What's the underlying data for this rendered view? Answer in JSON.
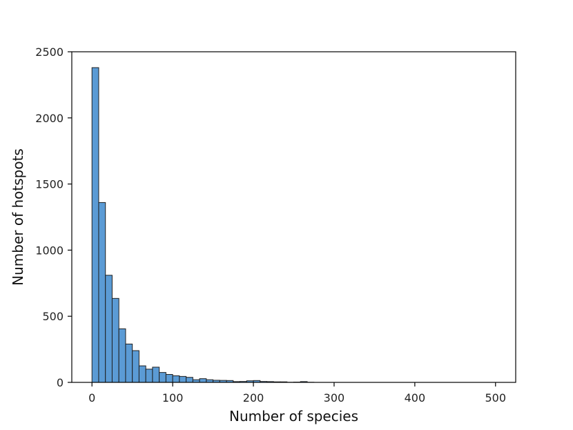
{
  "chart_data": {
    "type": "bar",
    "title": "",
    "xlabel": "Number of species",
    "ylabel": "Number of hotspots",
    "xlim": [
      -25,
      525
    ],
    "ylim": [
      0,
      2500
    ],
    "xticks": [
      0,
      100,
      200,
      300,
      400,
      500
    ],
    "yticks": [
      0,
      500,
      1000,
      1500,
      2000,
      2500
    ],
    "grid": false,
    "legend": "none",
    "bar_color": "#5b9bd5",
    "edge_color": "#1f1f1f",
    "bin_width": 8.33,
    "series": [
      {
        "values": [
          {
            "x0": 0,
            "x1": 8.33,
            "count": 2380
          },
          {
            "x0": 8.33,
            "x1": 16.67,
            "count": 1360
          },
          {
            "x0": 16.67,
            "x1": 25.0,
            "count": 810
          },
          {
            "x0": 25.0,
            "x1": 33.33,
            "count": 635
          },
          {
            "x0": 33.33,
            "x1": 41.67,
            "count": 405
          },
          {
            "x0": 41.67,
            "x1": 50.0,
            "count": 290
          },
          {
            "x0": 50.0,
            "x1": 58.33,
            "count": 240
          },
          {
            "x0": 58.33,
            "x1": 66.67,
            "count": 125
          },
          {
            "x0": 66.67,
            "x1": 75.0,
            "count": 100
          },
          {
            "x0": 75.0,
            "x1": 83.33,
            "count": 115
          },
          {
            "x0": 83.33,
            "x1": 91.67,
            "count": 75
          },
          {
            "x0": 91.67,
            "x1": 100.0,
            "count": 60
          },
          {
            "x0": 100.0,
            "x1": 108.33,
            "count": 50
          },
          {
            "x0": 108.33,
            "x1": 116.67,
            "count": 45
          },
          {
            "x0": 116.67,
            "x1": 125.0,
            "count": 38
          },
          {
            "x0": 125.0,
            "x1": 133.33,
            "count": 20
          },
          {
            "x0": 133.33,
            "x1": 141.67,
            "count": 28
          },
          {
            "x0": 141.67,
            "x1": 150.0,
            "count": 20
          },
          {
            "x0": 150.0,
            "x1": 158.33,
            "count": 16
          },
          {
            "x0": 158.33,
            "x1": 166.67,
            "count": 15
          },
          {
            "x0": 166.67,
            "x1": 175.0,
            "count": 14
          },
          {
            "x0": 175.0,
            "x1": 183.33,
            "count": 6
          },
          {
            "x0": 183.33,
            "x1": 191.67,
            "count": 7
          },
          {
            "x0": 191.67,
            "x1": 200.0,
            "count": 12
          },
          {
            "x0": 200.0,
            "x1": 208.33,
            "count": 14
          },
          {
            "x0": 208.33,
            "x1": 216.67,
            "count": 7
          },
          {
            "x0": 216.67,
            "x1": 225.0,
            "count": 6
          },
          {
            "x0": 225.0,
            "x1": 233.33,
            "count": 4
          },
          {
            "x0": 233.33,
            "x1": 241.67,
            "count": 4
          },
          {
            "x0": 241.67,
            "x1": 250.0,
            "count": 1
          },
          {
            "x0": 250.0,
            "x1": 258.33,
            "count": 2
          },
          {
            "x0": 258.33,
            "x1": 266.67,
            "count": 6
          },
          {
            "x0": 266.67,
            "x1": 275.0,
            "count": 1
          }
        ]
      }
    ]
  }
}
